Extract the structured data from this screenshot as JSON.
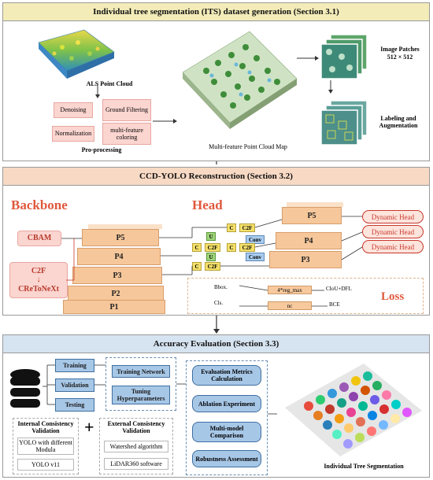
{
  "section1": {
    "title": "Individual tree segmentation (ITS) dataset generation (Section 3.1)",
    "als_label": "ALS Point Cloud",
    "steps": [
      "Denoising",
      "Ground Filtering",
      "Normalization",
      "multi-feature coloring"
    ],
    "preprocessing_label": "Pro-processing",
    "map_label": "Multi-feature Point Cloud Map",
    "patches_label": "Image Patches",
    "patches_size": "512 × 512",
    "labeling_label": "Labeling and Augmentation"
  },
  "section2": {
    "title": "CCD-YOLO Reconstruction (Section 3.2)",
    "backbone_label": "Backbone",
    "head_label": "Head",
    "cbam": "CBAM",
    "c2f": "C2F",
    "arrow_down": "↓",
    "creto": "CReToNeXt",
    "backbone_stages": [
      "P5",
      "P4",
      "P3",
      "P2",
      "P1"
    ],
    "head_stages": [
      "P5",
      "P4",
      "P3"
    ],
    "mini": {
      "U": "U",
      "C": "C",
      "C2F": "C2F",
      "Conv": "Conv"
    },
    "dynamic_head": "Dynamic Head",
    "bbox_label": "Bbox.",
    "bbox_box": "4*reg_max",
    "bbox_loss": "CIoU+DFL",
    "cls_label": "Cls.",
    "cls_box": "nc",
    "cls_loss": "BCE",
    "loss_label": "Loss"
  },
  "section3": {
    "title": "Accuracy Evaluation (Section 3.3)",
    "splits": [
      "Training",
      "Validation",
      "Testing"
    ],
    "training_network": "Training Network",
    "tuning": "Tuning Hyperparameters",
    "plus": "+",
    "internal_title": "Internal Consistency Validation",
    "internal_items": [
      "YOLO with different Modula",
      "YOLO v11"
    ],
    "external_title": "External Consistency Validation",
    "external_items": [
      "Watershed algorithm",
      "LiDAR360 software"
    ],
    "eval_items": [
      "Evaluation Metrics Calculation",
      "Ablation Experiment",
      "Multi-model Comparison",
      "Robustness Assessment"
    ],
    "its_label": "Individual Tree  Segmentation"
  }
}
